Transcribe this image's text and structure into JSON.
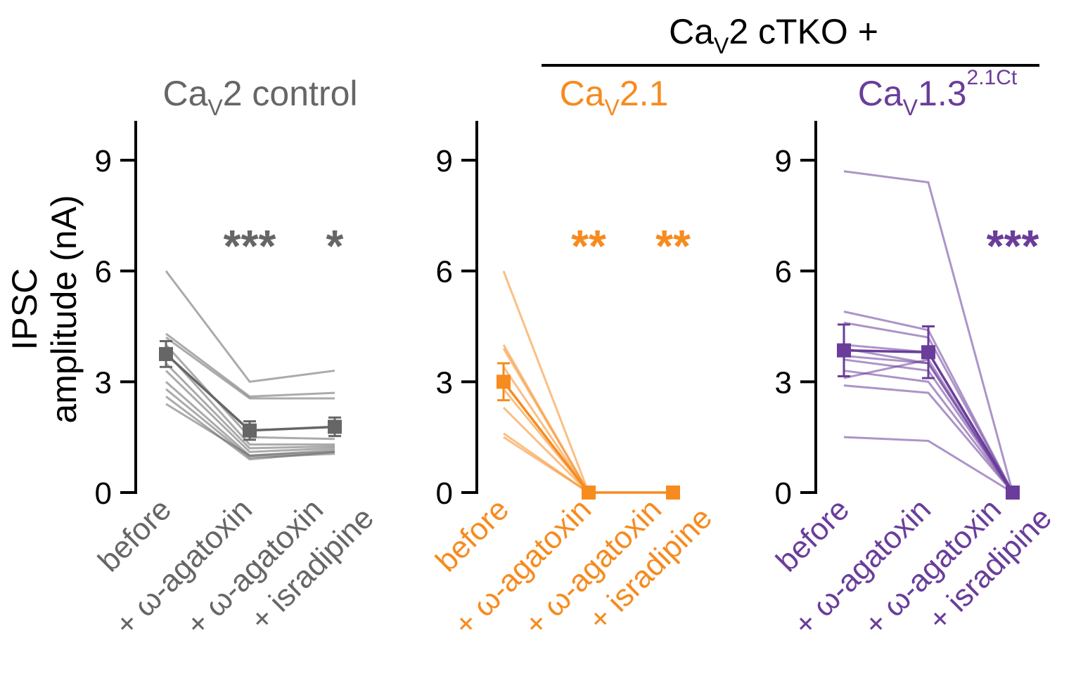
{
  "header": {
    "group_title_main": "Ca",
    "group_title_sub": "V",
    "group_title_rest": "2 cTKO +"
  },
  "y_axis": {
    "line1": "IPSC",
    "line2": "amplitude (nA)",
    "ticks": [
      "0",
      "3",
      "6",
      "9"
    ]
  },
  "conditions": {
    "before": "before",
    "aga_prefix": "+ ",
    "omega": "ω",
    "aga_rest": "-agatoxin",
    "isr": "+ isradipine"
  },
  "colors": {
    "gray": "#666666",
    "orange": "#f68b1f",
    "purple": "#6a3d9a"
  },
  "chart_data": [
    {
      "type": "line",
      "title": "Ca_V2 control",
      "title_parts": {
        "main": "Ca",
        "sub": "V",
        "rest": "2 control",
        "sup": ""
      },
      "color": "#666666",
      "x": [
        "before",
        "+ ω-agatoxin",
        "+ ω-agatoxin + isradipine"
      ],
      "ylabel": "IPSC amplitude (nA)",
      "ylim": [
        0,
        10
      ],
      "yticks": [
        0,
        3,
        6,
        9
      ],
      "significance": [
        "***",
        "*"
      ],
      "individual_cells": [
        [
          6.0,
          3.0,
          3.3
        ],
        [
          4.3,
          2.6,
          2.7
        ],
        [
          4.2,
          2.55,
          2.55
        ],
        [
          4.0,
          1.5,
          1.45
        ],
        [
          3.8,
          1.3,
          1.3
        ],
        [
          3.5,
          1.2,
          1.25
        ],
        [
          3.3,
          1.1,
          1.2
        ],
        [
          3.0,
          1.0,
          1.1
        ],
        [
          2.8,
          0.95,
          1.05
        ],
        [
          2.6,
          0.9,
          1.1
        ],
        [
          2.4,
          1.0,
          1.15
        ]
      ],
      "mean": [
        3.75,
        1.68,
        1.78
      ],
      "sem": [
        0.35,
        0.25,
        0.25
      ]
    },
    {
      "type": "line",
      "title": "Ca_V2.1",
      "title_parts": {
        "main": "Ca",
        "sub": "V",
        "rest": "2.1",
        "sup": ""
      },
      "color": "#f68b1f",
      "x": [
        "before",
        "+ ω-agatoxin",
        "+ ω-agatoxin + isradipine"
      ],
      "ylabel": "IPSC amplitude (nA)",
      "ylim": [
        0,
        10
      ],
      "yticks": [
        0,
        3,
        6,
        9
      ],
      "significance": [
        "**",
        "**"
      ],
      "individual_cells": [
        [
          6.0,
          0.0,
          null
        ],
        [
          4.0,
          0.0,
          null
        ],
        [
          3.9,
          0.0,
          null
        ],
        [
          3.4,
          0.0,
          null
        ],
        [
          2.8,
          0.0,
          null
        ],
        [
          2.3,
          0.0,
          null
        ],
        [
          1.6,
          0.0,
          null
        ],
        [
          1.5,
          0.0,
          null
        ]
      ],
      "mean": [
        3.0,
        0.0,
        0.0
      ],
      "sem": [
        0.5,
        0.0,
        0.0
      ]
    },
    {
      "type": "line",
      "title": "Ca_V1.3^2.1Ct",
      "title_parts": {
        "main": "Ca",
        "sub": "V",
        "rest": "1.3",
        "sup": "2.1Ct"
      },
      "color": "#6a3d9a",
      "x": [
        "before",
        "+ ω-agatoxin",
        "+ ω-agatoxin + isradipine"
      ],
      "ylabel": "IPSC amplitude (nA)",
      "ylim": [
        0,
        10
      ],
      "yticks": [
        0,
        3,
        6,
        9
      ],
      "significance": [
        null,
        "***"
      ],
      "individual_cells": [
        [
          8.7,
          8.4,
          0.0
        ],
        [
          4.9,
          4.4,
          0.0
        ],
        [
          4.6,
          4.2,
          0.0
        ],
        [
          4.0,
          3.8,
          0.0
        ],
        [
          3.9,
          3.5,
          0.0
        ],
        [
          3.7,
          3.5,
          0.0
        ],
        [
          3.6,
          3.3,
          0.0
        ],
        [
          3.3,
          3.0,
          0.0
        ],
        [
          3.1,
          3.6,
          0.0
        ],
        [
          2.9,
          2.7,
          0.0
        ],
        [
          1.5,
          1.4,
          0.0
        ]
      ],
      "mean": [
        3.85,
        3.8,
        0.0
      ],
      "sem": [
        0.7,
        0.7,
        0.0
      ]
    }
  ]
}
